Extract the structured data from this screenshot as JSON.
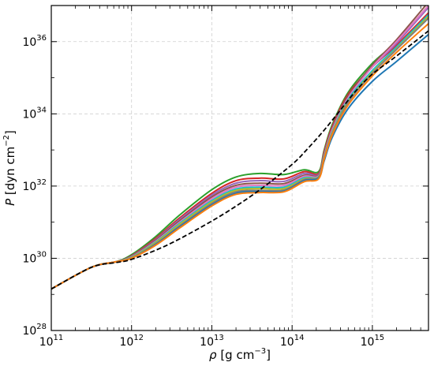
{
  "chart_data": {
    "type": "line",
    "xscale": "log",
    "yscale": "log",
    "xlim": [
      100000000000.0,
      5000000000000000.0
    ],
    "ylim": [
      1e+28,
      1e+37
    ],
    "grid": true,
    "xlabel": {
      "symbol": "ρ",
      "text": " [g cm",
      "exp": "−3",
      "close": "]"
    },
    "ylabel": {
      "symbol": "P",
      "text": " [dyn cm",
      "exp": "−2",
      "close": "]"
    },
    "x_major_ticks": [
      {
        "base": "10",
        "exp": "11",
        "value": 100000000000.0
      },
      {
        "base": "10",
        "exp": "12",
        "value": 1000000000000.0
      },
      {
        "base": "10",
        "exp": "13",
        "value": 10000000000000.0
      },
      {
        "base": "10",
        "exp": "14",
        "value": 100000000000000.0
      },
      {
        "base": "10",
        "exp": "15",
        "value": 1000000000000000.0
      }
    ],
    "y_major_ticks": [
      {
        "base": "10",
        "exp": "28",
        "value": 1e+28
      },
      {
        "base": "10",
        "exp": "30",
        "value": 1e+30
      },
      {
        "base": "10",
        "exp": "32",
        "value": 1e+32
      },
      {
        "base": "10",
        "exp": "34",
        "value": 1e+34
      },
      {
        "base": "10",
        "exp": "36",
        "value": 1e+36
      }
    ],
    "series": [
      {
        "color": "#2ca02c",
        "style": "solid",
        "log10_x": [
          11,
          11.5,
          11.8,
          12.0,
          12.3,
          12.6,
          13.0,
          13.3,
          13.6,
          13.9,
          14.15,
          14.33,
          14.4,
          14.5,
          14.7,
          15.0,
          15.3,
          15.7
        ],
        "log10_y": [
          29.15,
          29.75,
          29.9,
          30.1,
          30.6,
          31.2,
          31.9,
          32.25,
          32.35,
          32.32,
          32.45,
          32.4,
          33.0,
          33.7,
          34.6,
          35.4,
          36.0,
          37.0
        ]
      },
      {
        "color": "#d62728",
        "style": "solid",
        "log10_x": [
          11,
          11.5,
          11.8,
          12.0,
          12.3,
          12.6,
          13.0,
          13.3,
          13.6,
          13.9,
          14.15,
          14.33,
          14.4,
          14.5,
          14.7,
          15.0,
          15.3,
          15.7
        ],
        "log10_y": [
          29.15,
          29.75,
          29.9,
          30.07,
          30.55,
          31.12,
          31.8,
          32.15,
          32.22,
          32.2,
          32.4,
          32.35,
          32.95,
          33.65,
          34.55,
          35.3,
          35.9,
          36.8
        ]
      },
      {
        "color": "#9467bd",
        "style": "solid",
        "log10_x": [
          11,
          11.5,
          11.8,
          12.0,
          12.3,
          12.6,
          13.0,
          13.3,
          13.6,
          13.9,
          14.15,
          14.33,
          14.4,
          14.5,
          14.7,
          15.0,
          15.3,
          15.7
        ],
        "log10_y": [
          29.15,
          29.75,
          29.9,
          30.06,
          30.52,
          31.08,
          31.75,
          32.08,
          32.15,
          32.13,
          32.35,
          32.32,
          32.9,
          33.6,
          34.5,
          35.3,
          35.95,
          36.95
        ]
      },
      {
        "color": "#8c564b",
        "style": "solid",
        "log10_x": [
          11,
          11.5,
          11.8,
          12.0,
          12.3,
          12.6,
          13.0,
          13.3,
          13.6,
          13.9,
          14.15,
          14.33,
          14.4,
          14.5,
          14.7,
          15.0,
          15.3,
          15.7
        ],
        "log10_y": [
          29.15,
          29.75,
          29.9,
          30.05,
          30.5,
          31.04,
          31.7,
          32.02,
          32.08,
          32.07,
          32.3,
          32.3,
          32.88,
          33.58,
          34.5,
          35.35,
          36.05,
          37.1
        ]
      },
      {
        "color": "#e377c2",
        "style": "solid",
        "log10_x": [
          11,
          11.5,
          11.8,
          12.0,
          12.3,
          12.6,
          13.0,
          13.3,
          13.6,
          13.9,
          14.15,
          14.33,
          14.4,
          14.5,
          14.7,
          15.0,
          15.3,
          15.7
        ],
        "log10_y": [
          29.15,
          29.75,
          29.9,
          30.04,
          30.47,
          31.0,
          31.65,
          31.97,
          32.02,
          32.02,
          32.27,
          32.28,
          32.85,
          33.55,
          34.45,
          35.3,
          36.0,
          37.0
        ]
      },
      {
        "color": "#17becf",
        "style": "solid",
        "log10_x": [
          11,
          11.5,
          11.8,
          12.0,
          12.3,
          12.6,
          13.0,
          13.3,
          13.6,
          13.9,
          14.15,
          14.33,
          14.4,
          14.5,
          14.7,
          15.0,
          15.3,
          15.7
        ],
        "log10_y": [
          29.15,
          29.75,
          29.9,
          30.03,
          30.45,
          30.97,
          31.6,
          31.92,
          31.97,
          31.97,
          32.23,
          32.26,
          32.82,
          33.5,
          34.4,
          35.2,
          35.85,
          36.75
        ]
      },
      {
        "color": "#bcbd22",
        "style": "solid",
        "log10_x": [
          11,
          11.5,
          11.8,
          12.0,
          12.3,
          12.6,
          13.0,
          13.3,
          13.6,
          13.9,
          14.15,
          14.33,
          14.4,
          14.5,
          14.7,
          15.0,
          15.3,
          15.7
        ],
        "log10_y": [
          29.15,
          29.75,
          29.9,
          30.02,
          30.43,
          30.94,
          31.56,
          31.88,
          31.93,
          31.93,
          32.2,
          32.25,
          32.8,
          33.48,
          34.35,
          35.15,
          35.8,
          36.7
        ]
      },
      {
        "color": "#7f7f7f",
        "style": "solid",
        "log10_x": [
          11,
          11.5,
          11.8,
          12.0,
          12.3,
          12.6,
          13.0,
          13.3,
          13.6,
          13.9,
          14.15,
          14.33,
          14.4,
          14.5,
          14.7,
          15.0,
          15.3,
          15.7
        ],
        "log10_y": [
          29.15,
          29.75,
          29.9,
          30.01,
          30.4,
          30.9,
          31.52,
          31.84,
          31.88,
          31.89,
          32.18,
          32.24,
          32.78,
          33.45,
          34.32,
          35.12,
          35.78,
          36.65
        ]
      },
      {
        "color": "#1f77b4",
        "style": "solid",
        "log10_x": [
          11,
          11.5,
          11.8,
          12.0,
          12.3,
          12.6,
          13.0,
          13.3,
          13.6,
          13.9,
          14.15,
          14.33,
          14.4,
          14.5,
          14.7,
          15.0,
          15.3,
          15.7
        ],
        "log10_y": [
          29.15,
          29.75,
          29.9,
          30.0,
          30.38,
          30.87,
          31.48,
          31.8,
          31.85,
          31.86,
          32.15,
          32.22,
          32.7,
          33.35,
          34.15,
          34.9,
          35.45,
          36.2
        ]
      },
      {
        "color": "#ff7f0e",
        "style": "solid",
        "log10_x": [
          11,
          11.5,
          11.8,
          12.0,
          12.3,
          12.6,
          13.0,
          13.3,
          13.6,
          13.9,
          14.15,
          14.33,
          14.4,
          14.5,
          14.7,
          15.0,
          15.3,
          15.7
        ],
        "log10_y": [
          29.15,
          29.75,
          29.9,
          30.0,
          30.36,
          30.84,
          31.45,
          31.77,
          31.82,
          31.84,
          32.12,
          32.2,
          32.75,
          33.42,
          34.25,
          35.05,
          35.7,
          36.5
        ]
      },
      {
        "color": "#000000",
        "style": "dashed",
        "log10_x": [
          11,
          11.5,
          11.8,
          12.0,
          12.4,
          12.8,
          13.2,
          13.6,
          14.0,
          14.2,
          14.4,
          14.6,
          14.8,
          15.0,
          15.3,
          15.7
        ],
        "log10_y": [
          29.15,
          29.75,
          29.88,
          29.97,
          30.32,
          30.78,
          31.3,
          31.9,
          32.6,
          33.05,
          33.55,
          34.1,
          34.65,
          35.1,
          35.6,
          36.3
        ]
      }
    ]
  }
}
